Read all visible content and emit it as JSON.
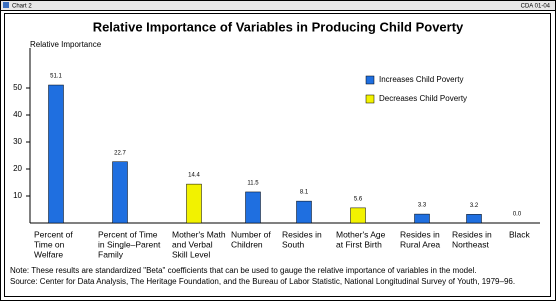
{
  "window": {
    "left_label": "Chart 2",
    "right_label": "CDA 01-04"
  },
  "chart_data": {
    "type": "bar",
    "title": "Relative Importance of Variables in Producing Child Poverty",
    "y_label": "Relative Importance",
    "categories": [
      [
        "Percent of",
        "Time on",
        "Welfare"
      ],
      [
        "Percent of Time",
        "in Single–Parent",
        "Family"
      ],
      [
        "Mother's Math",
        "and Verbal",
        "Skill Level"
      ],
      [
        "Number of",
        "Children"
      ],
      [
        "Resides in",
        "South"
      ],
      [
        "Mother's Age",
        "at First Birth"
      ],
      [
        "Resides in",
        "Rural Area"
      ],
      [
        "Resides in",
        "Northeast"
      ],
      [
        "Black"
      ]
    ],
    "series": [
      {
        "name": "Increases Child Poverty",
        "color": "#1f6fe0",
        "values": [
          51.1,
          22.7,
          null,
          11.5,
          8.1,
          null,
          3.3,
          3.2,
          0.0
        ],
        "value_labels": [
          "51.1",
          "22.7",
          null,
          "11.5",
          "8.1",
          null,
          "3.3",
          "3.2",
          "0.0"
        ]
      },
      {
        "name": "Decreases Child Poverty",
        "color": "#f2f200",
        "values": [
          null,
          null,
          14.4,
          null,
          null,
          5.6,
          null,
          null,
          null
        ],
        "value_labels": [
          null,
          null,
          "14.4",
          null,
          null,
          "5.6",
          null,
          null,
          null
        ]
      }
    ],
    "ylim": [
      0,
      60
    ],
    "yticks": [
      10,
      20,
      30,
      40,
      50
    ],
    "legend": "upper right",
    "notes": [
      "Note:  These results are standardized \"Beta\" coefficients that can be used to gauge the relative importance of variables in the model.",
      "Source: Center for Data Analysis, The Heritage Foundation, and the Bureau of Labor Statistic, National Longitudinal Survey of Youth, 1979–96."
    ]
  }
}
